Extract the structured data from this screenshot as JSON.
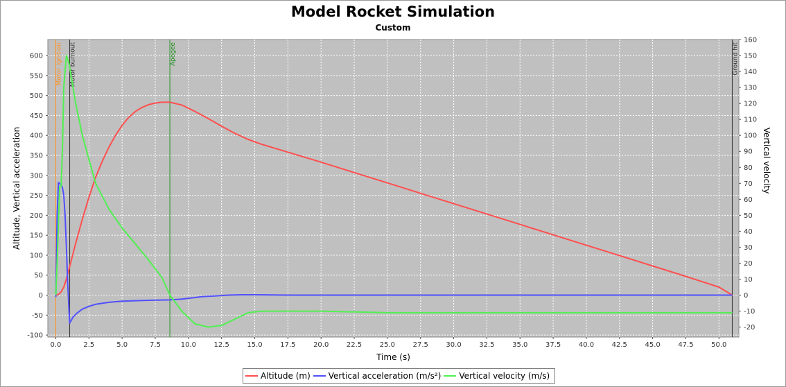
{
  "chart_data": {
    "type": "line",
    "title": "Model Rocket Simulation",
    "subtitle": "Custom",
    "xlabel": "Time (s)",
    "ylabel": "Altitude, Vertical acceleration",
    "y2label": "Vertical velocity",
    "xlim": [
      -0.6,
      51.5
    ],
    "ylim": [
      -105,
      640
    ],
    "y2lim": [
      -26.25,
      160
    ],
    "xticks": [
      "0.0",
      "2.5",
      "5.0",
      "7.5",
      "10.0",
      "12.5",
      "15.0",
      "17.5",
      "20.0",
      "22.5",
      "25.0",
      "27.5",
      "30.0",
      "32.5",
      "35.0",
      "37.5",
      "40.0",
      "42.5",
      "45.0",
      "47.5",
      "50.0"
    ],
    "yticks": [
      "-100",
      "-50",
      "0",
      "50",
      "100",
      "150",
      "200",
      "250",
      "300",
      "350",
      "400",
      "450",
      "500",
      "550",
      "600"
    ],
    "y2ticks": [
      "-20",
      "-10",
      "0",
      "10",
      "20",
      "30",
      "40",
      "50",
      "60",
      "70",
      "80",
      "90",
      "100",
      "110",
      "120",
      "130",
      "140",
      "150",
      "160"
    ],
    "grid": true,
    "legend_position": "bottom",
    "background_color": "#c0c0c0",
    "series": [
      {
        "name": "Altitude (m)",
        "color": "#ff4f4f",
        "axis": "left",
        "x": [
          0,
          0.2,
          0.4,
          0.6,
          0.8,
          1.0,
          1.5,
          2.0,
          2.5,
          3.0,
          3.5,
          4.0,
          4.5,
          5.0,
          5.5,
          6.0,
          6.5,
          7.0,
          7.5,
          8.0,
          8.6,
          9.5,
          10.5,
          11.5,
          12.5,
          13.5,
          14.5,
          15.5,
          17.5,
          20.0,
          22.5,
          25.0,
          27.5,
          30.0,
          32.5,
          35.0,
          37.5,
          40.0,
          42.5,
          45.0,
          47.5,
          50.0,
          51.0
        ],
        "values": [
          0,
          2,
          8,
          20,
          40,
          65,
          130,
          190,
          245,
          295,
          335,
          370,
          400,
          425,
          445,
          460,
          470,
          477,
          481,
          483,
          483,
          476,
          460,
          442,
          423,
          405,
          390,
          378,
          358,
          333,
          307,
          281,
          255,
          229,
          203,
          177,
          151,
          125,
          99,
          73,
          47,
          20,
          0
        ]
      },
      {
        "name": "Vertical acceleration (m/s²)",
        "color": "#5050ff",
        "axis": "left",
        "x": [
          0,
          0.1,
          0.2,
          0.35,
          0.5,
          0.6,
          0.7,
          0.8,
          0.9,
          1.0,
          1.05,
          1.3,
          1.6,
          2.0,
          2.5,
          3.0,
          4.0,
          5.0,
          6.0,
          7.0,
          8.6,
          9.5,
          10.0,
          10.5,
          11.0,
          12.0,
          13.0,
          14.0,
          15.0,
          17.5,
          20.0,
          25.0,
          30.0,
          35.0,
          40.0,
          45.0,
          50.0,
          51.0
        ],
        "values": [
          -5,
          200,
          282,
          278,
          270,
          250,
          200,
          120,
          30,
          -40,
          -70,
          -55,
          -45,
          -35,
          -28,
          -23,
          -18,
          -15,
          -14,
          -13,
          -12,
          -10,
          -8,
          -6,
          -4,
          -2,
          0,
          1,
          1,
          0,
          0,
          0,
          0,
          0,
          0,
          0,
          0,
          0
        ]
      },
      {
        "name": "Vertical velocity (m/s)",
        "color": "#50f050",
        "axis": "right",
        "x": [
          0,
          0.1,
          0.2,
          0.3,
          0.4,
          0.5,
          0.6,
          0.8,
          1.0,
          1.2,
          1.5,
          2.0,
          2.5,
          3.0,
          3.5,
          4.0,
          5.0,
          6.0,
          7.0,
          8.0,
          8.6,
          9.5,
          10.5,
          11.5,
          12.5,
          13.5,
          14.5,
          15.5,
          17.5,
          20.0,
          25.0,
          30.0,
          35.0,
          40.0,
          45.0,
          50.0,
          51.0
        ],
        "values": [
          0,
          20,
          45,
          68,
          68,
          90,
          130,
          150,
          145,
          135,
          120,
          100,
          85,
          70,
          62,
          54,
          42,
          32,
          22,
          11,
          0,
          -10,
          -18,
          -20,
          -19,
          -15,
          -11,
          -10,
          -10,
          -10,
          -11,
          -11,
          -11,
          -11,
          -11,
          -11,
          -11
        ]
      }
    ],
    "markers": [
      {
        "label": "Motor ignition",
        "x": 0.0,
        "color": "#ff9020"
      },
      {
        "label": "Motor burnout",
        "x": 1.05,
        "color": "#303030"
      },
      {
        "label": "Apogee",
        "x": 8.6,
        "color": "#209020"
      },
      {
        "label": "Ground hit",
        "x": 51.0,
        "color": "#303030"
      }
    ]
  }
}
